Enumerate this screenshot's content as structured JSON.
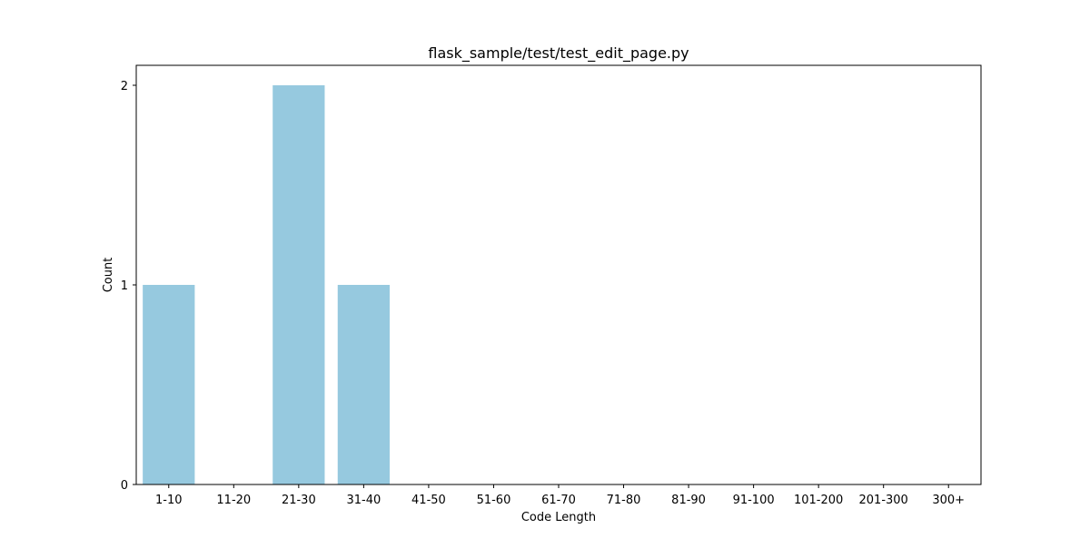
{
  "chart_data": {
    "type": "bar",
    "title": "flask_sample/test/test_edit_page.py",
    "xlabel": "Code Length",
    "ylabel": "Count",
    "categories": [
      "1-10",
      "11-20",
      "21-30",
      "31-40",
      "41-50",
      "51-60",
      "61-70",
      "71-80",
      "81-90",
      "91-100",
      "101-200",
      "201-300",
      "300+"
    ],
    "values": [
      1,
      0,
      2,
      1,
      0,
      0,
      0,
      0,
      0,
      0,
      0,
      0,
      0
    ],
    "ylim": [
      0,
      2.1
    ],
    "yticks": [
      0,
      1,
      2
    ],
    "grid": false,
    "bar_color": "#96c9df"
  }
}
